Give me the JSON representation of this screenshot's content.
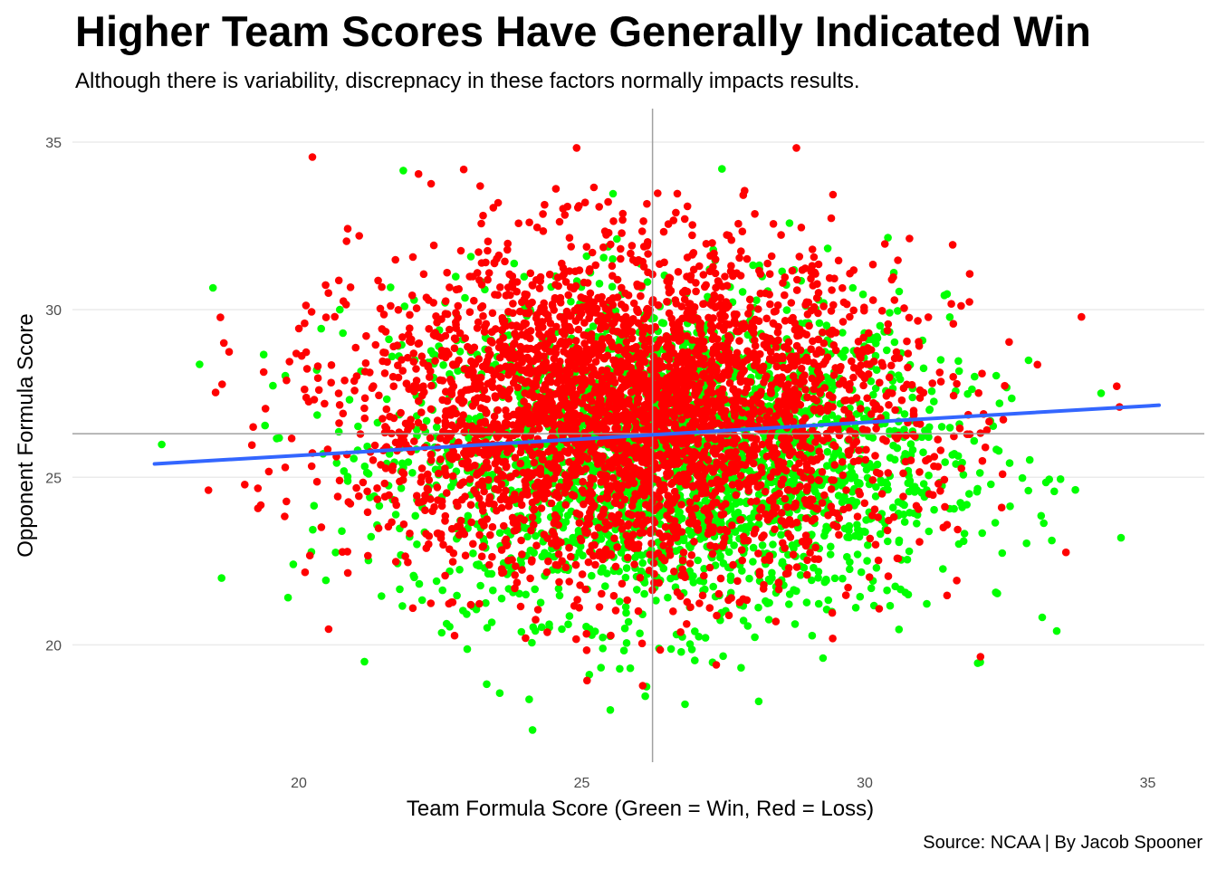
{
  "chart_data": {
    "type": "scatter",
    "title": "Higher Team Scores Have Generally Indicated Win",
    "subtitle": "Although there is variability, discrepnacy in these factors normally impacts results.",
    "xlabel": "Team Formula Score (Green = Win, Red = Loss)",
    "ylabel": "Opponent Formula Score",
    "caption": "Source: NCAA | By Jacob Spooner",
    "xlim": [
      16.0,
      36.0
    ],
    "ylim": [
      16.5,
      36.0
    ],
    "x_ticks": [
      "20",
      "25",
      "30",
      "35"
    ],
    "y_ticks": [
      "20",
      "25",
      "30",
      "35"
    ],
    "grid": "horizontal major lines",
    "reference_lines": {
      "vertical_x": 26.25,
      "horizontal_y": 26.3
    },
    "series": [
      {
        "name": "Win",
        "color": "#00ff00",
        "center": [
          26.6,
          25.6
        ],
        "sd": [
          2.4,
          2.4
        ],
        "count": 2600
      },
      {
        "name": "Loss",
        "color": "#ff0000",
        "center": [
          25.9,
          26.9
        ],
        "sd": [
          2.4,
          2.4
        ],
        "count": 3600
      }
    ],
    "fit_line": {
      "color": "#3366ff",
      "points": [
        [
          17.45,
          25.4
        ],
        [
          35.2,
          27.15
        ]
      ]
    }
  }
}
